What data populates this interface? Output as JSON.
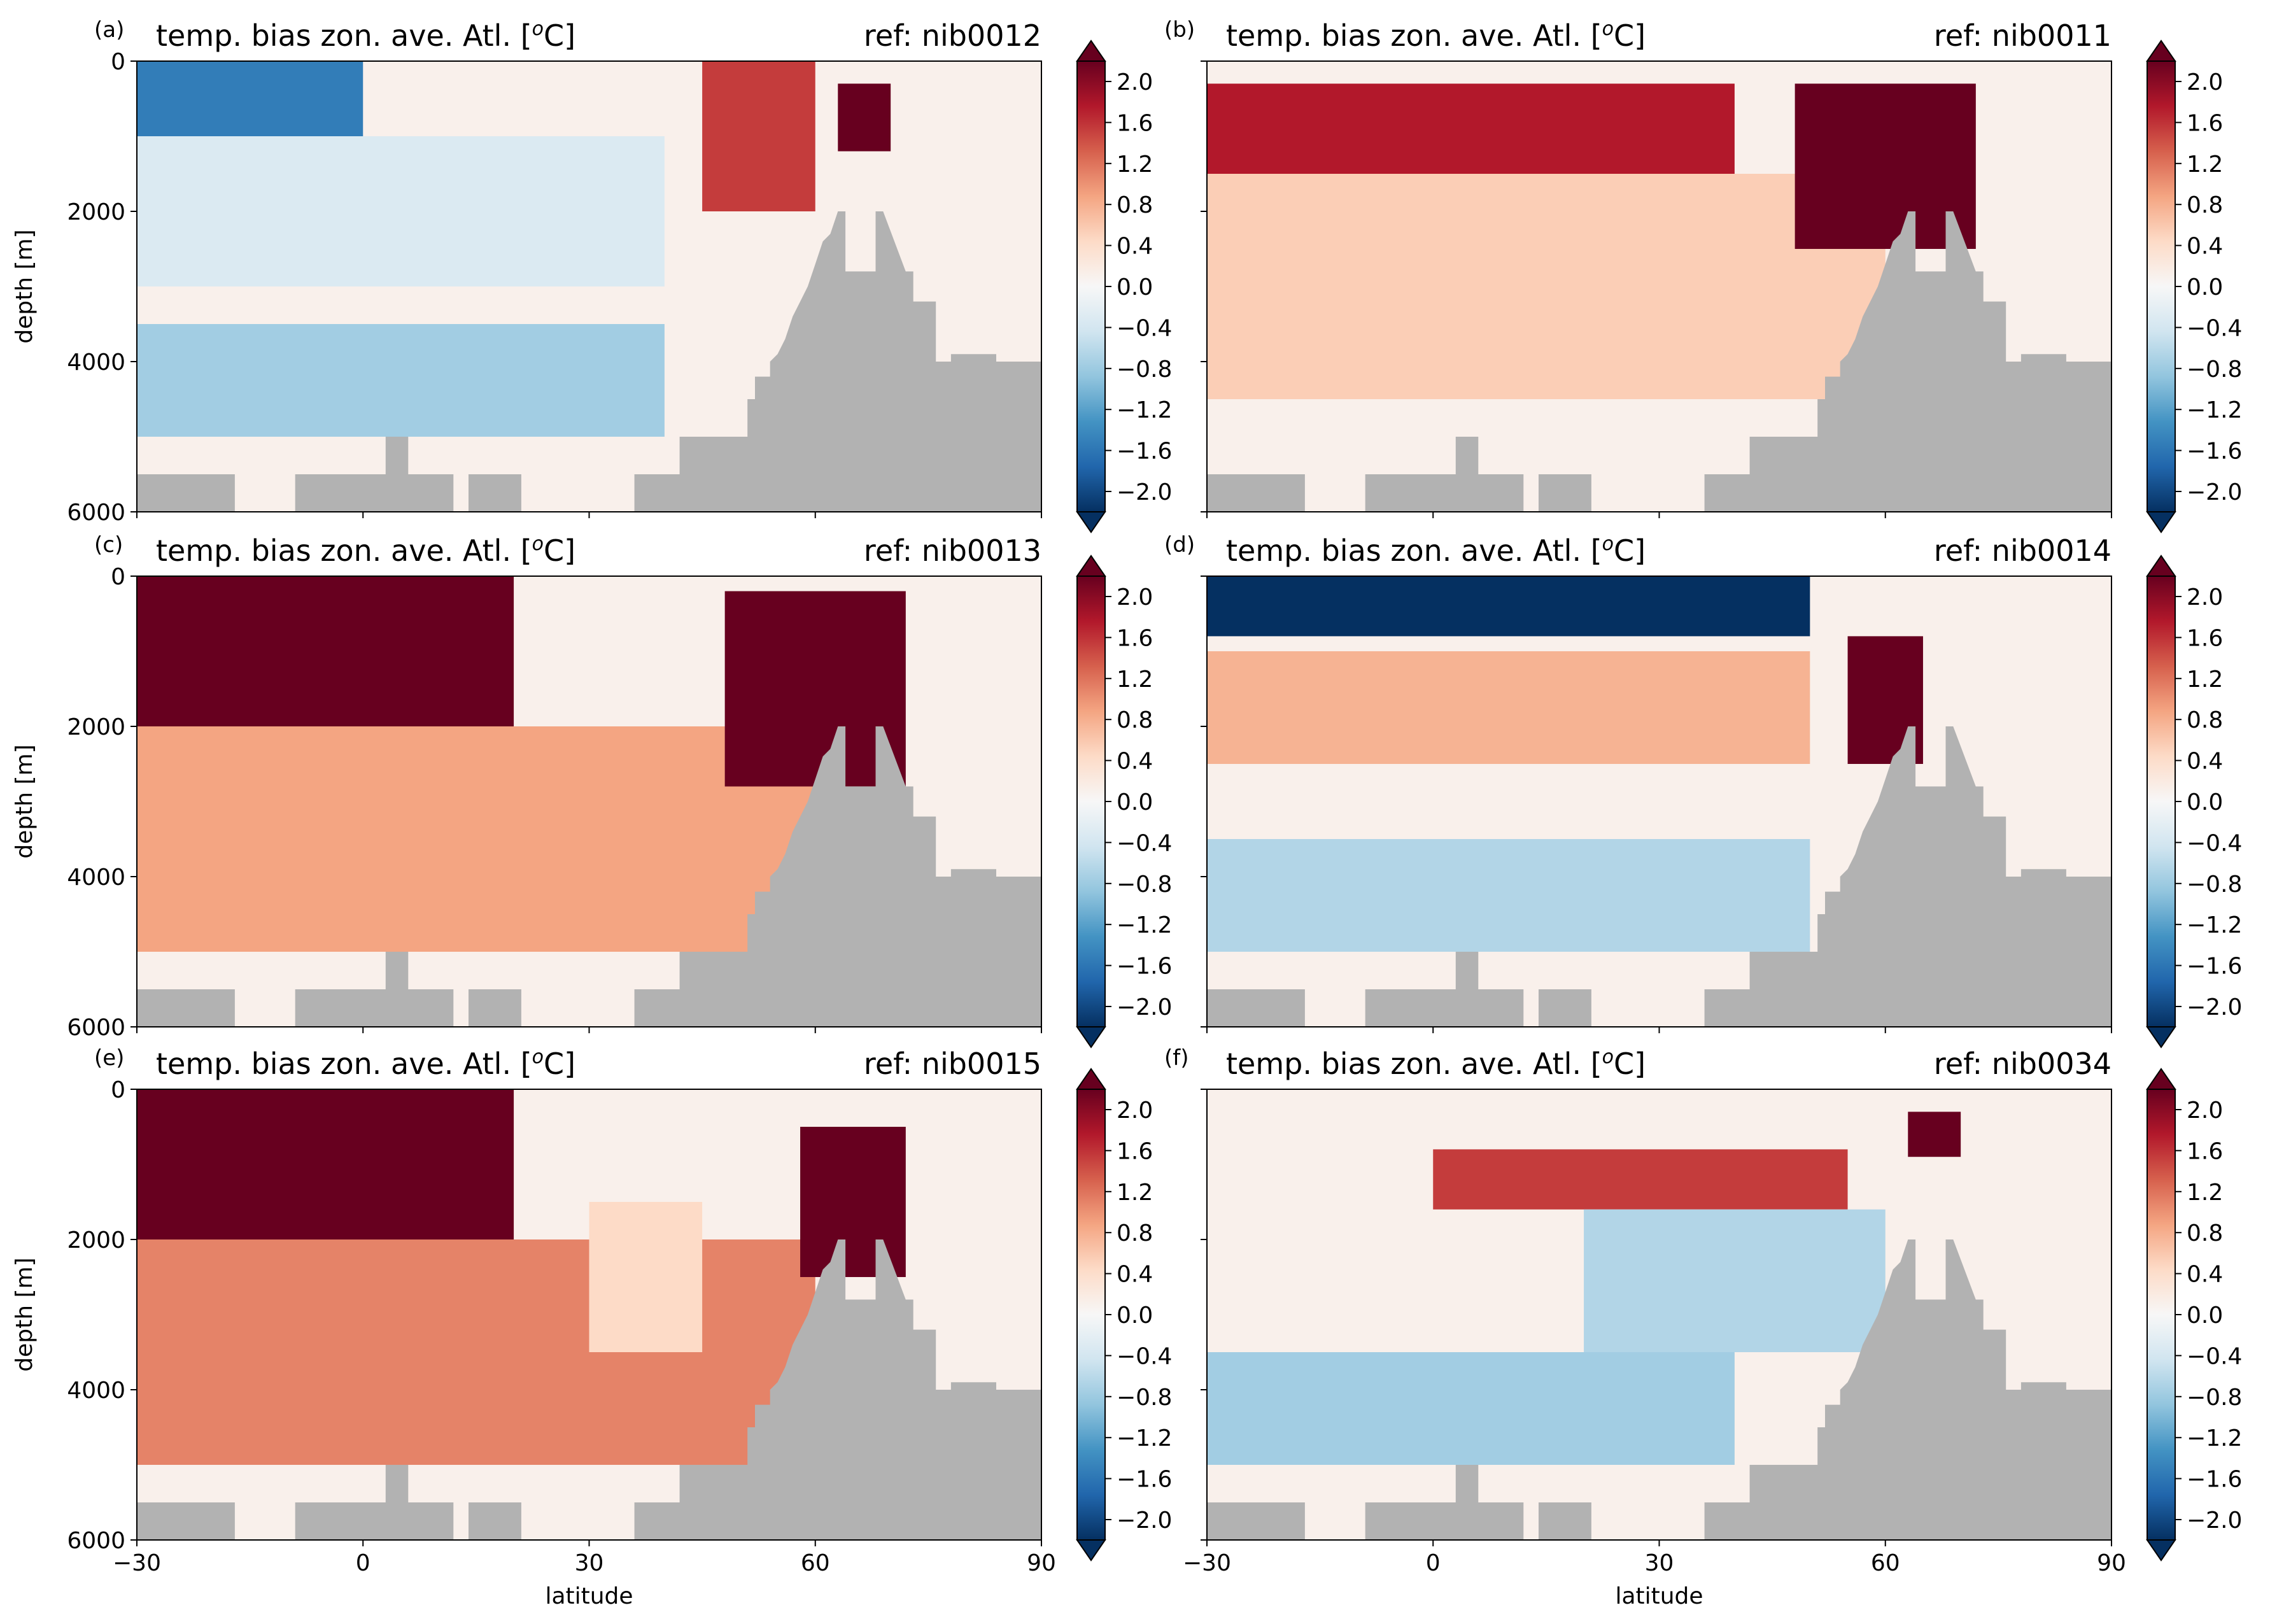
{
  "figure": {
    "common": {
      "title": "temp. bias zon. ave. Atl. [",
      "title_sup": "o",
      "title_end": "C]",
      "ylabel": "depth [m]",
      "xlabel": "latitude",
      "colorbar_max_label": "2.0"
    }
  },
  "colors": {
    "land": "#b2b2b2",
    "diverging_scale": [
      "#053061",
      "#2166ac",
      "#4393c3",
      "#92c5de",
      "#d1e5f0",
      "#f7f7f7",
      "#fddbc7",
      "#f4a582",
      "#d6604d",
      "#b2182b",
      "#67001f"
    ]
  },
  "chart_data": [
    {
      "type": "heatmap",
      "panel_label": "(a)",
      "title": "temp. bias zon. ave. Atl. [oC]",
      "ref_label": "ref: nib0012",
      "xlabel": "",
      "ylabel": "depth [m]",
      "xlim": [
        -30,
        90
      ],
      "ylim": [
        6000,
        0
      ],
      "x_ticks": [],
      "y_ticks": [
        "0",
        "2000",
        "4000",
        "6000"
      ],
      "colorbar": {
        "ticks": [
          "2.0",
          "1.6",
          "1.2",
          "0.8",
          "0.4",
          "0.0",
          "−0.4",
          "−0.8",
          "−1.2",
          "−1.6",
          "−2.0"
        ],
        "range": [
          -2.0,
          2.0
        ],
        "colormap": "RdBu_r",
        "extend": "both"
      },
      "field": [
        {
          "lat": [
            -30,
            0
          ],
          "depth": [
            0,
            1500
          ],
          "bias": -1.4
        },
        {
          "lat": [
            -30,
            40
          ],
          "depth": [
            1000,
            3000
          ],
          "bias": -0.3
        },
        {
          "lat": [
            -30,
            40
          ],
          "depth": [
            3500,
            5000
          ],
          "bias": -0.7
        },
        {
          "lat": [
            45,
            60
          ],
          "depth": [
            0,
            2000
          ],
          "bias": 1.4
        },
        {
          "lat": [
            63,
            70
          ],
          "depth": [
            300,
            1200
          ],
          "bias": 2.2
        }
      ]
    },
    {
      "type": "heatmap",
      "panel_label": "(b)",
      "title": "temp. bias zon. ave. Atl. [oC]",
      "ref_label": "ref: nib0011",
      "xlabel": "",
      "ylabel": "",
      "xlim": [
        -30,
        90
      ],
      "ylim": [
        6000,
        0
      ],
      "x_ticks": [],
      "y_ticks": [],
      "colorbar": {
        "ticks": [
          "2.0",
          "1.6",
          "1.2",
          "0.8",
          "0.4",
          "0.0",
          "−0.4",
          "−0.8",
          "−1.2",
          "−1.6",
          "−2.0"
        ],
        "range": [
          -2.0,
          2.0
        ],
        "colormap": "RdBu_r",
        "extend": "both"
      },
      "field": [
        {
          "lat": [
            -30,
            40
          ],
          "depth": [
            300,
            1500
          ],
          "bias": 1.6
        },
        {
          "lat": [
            -30,
            60
          ],
          "depth": [
            1500,
            4500
          ],
          "bias": 0.5
        },
        {
          "lat": [
            48,
            72
          ],
          "depth": [
            300,
            2500
          ],
          "bias": 2.2
        }
      ]
    },
    {
      "type": "heatmap",
      "panel_label": "(c)",
      "title": "temp. bias zon. ave. Atl. [oC]",
      "ref_label": "ref: nib0013",
      "xlabel": "",
      "ylabel": "depth [m]",
      "xlim": [
        -30,
        90
      ],
      "ylim": [
        6000,
        0
      ],
      "x_ticks": [],
      "y_ticks": [
        "0",
        "2000",
        "4000",
        "6000"
      ],
      "colorbar": {
        "ticks": [
          "2.0",
          "1.6",
          "1.2",
          "0.8",
          "0.4",
          "0.0",
          "−0.4",
          "−0.8",
          "−1.2",
          "−1.6",
          "−2.0"
        ],
        "range": [
          -2.0,
          2.0
        ],
        "colormap": "RdBu_r",
        "extend": "both"
      },
      "field": [
        {
          "lat": [
            -30,
            20
          ],
          "depth": [
            0,
            2000
          ],
          "bias": 2.2
        },
        {
          "lat": [
            -30,
            60
          ],
          "depth": [
            2000,
            5000
          ],
          "bias": 0.8
        },
        {
          "lat": [
            48,
            72
          ],
          "depth": [
            200,
            2800
          ],
          "bias": 2.2
        }
      ]
    },
    {
      "type": "heatmap",
      "panel_label": "(d)",
      "title": "temp. bias zon. ave. Atl. [oC]",
      "ref_label": "ref: nib0014",
      "xlabel": "",
      "ylabel": "",
      "xlim": [
        -30,
        90
      ],
      "ylim": [
        6000,
        0
      ],
      "x_ticks": [],
      "y_ticks": [],
      "colorbar": {
        "ticks": [
          "2.0",
          "1.6",
          "1.2",
          "0.8",
          "0.4",
          "0.0",
          "−0.4",
          "−0.8",
          "−1.2",
          "−1.6",
          "−2.0"
        ],
        "range": [
          -2.0,
          2.0
        ],
        "colormap": "RdBu_r",
        "extend": "both"
      },
      "field": [
        {
          "lat": [
            -30,
            50
          ],
          "depth": [
            0,
            800
          ],
          "bias": -2.2
        },
        {
          "lat": [
            -30,
            50
          ],
          "depth": [
            1000,
            2500
          ],
          "bias": 0.7
        },
        {
          "lat": [
            -30,
            50
          ],
          "depth": [
            3500,
            5000
          ],
          "bias": -0.6
        },
        {
          "lat": [
            55,
            65
          ],
          "depth": [
            800,
            2500
          ],
          "bias": 2.2
        }
      ]
    },
    {
      "type": "heatmap",
      "panel_label": "(e)",
      "title": "temp. bias zon. ave. Atl. [oC]",
      "ref_label": "ref: nib0015",
      "xlabel": "latitude",
      "ylabel": "depth [m]",
      "xlim": [
        -30,
        90
      ],
      "ylim": [
        6000,
        0
      ],
      "x_ticks": [
        "−30",
        "0",
        "30",
        "60",
        "90"
      ],
      "y_ticks": [
        "0",
        "2000",
        "4000",
        "6000"
      ],
      "colorbar": {
        "ticks": [
          "2.0",
          "1.6",
          "1.2",
          "0.8",
          "0.4",
          "0.0",
          "−0.4",
          "−0.8",
          "−1.2",
          "−1.6",
          "−2.0"
        ],
        "range": [
          -2.0,
          2.0
        ],
        "colormap": "RdBu_r",
        "extend": "both"
      },
      "field": [
        {
          "lat": [
            -30,
            20
          ],
          "depth": [
            0,
            2000
          ],
          "bias": 2.2
        },
        {
          "lat": [
            -30,
            60
          ],
          "depth": [
            2000,
            5000
          ],
          "bias": 1.0
        },
        {
          "lat": [
            30,
            45
          ],
          "depth": [
            1500,
            3500
          ],
          "bias": 0.4
        },
        {
          "lat": [
            58,
            72
          ],
          "depth": [
            500,
            2500
          ],
          "bias": 2.2
        }
      ]
    },
    {
      "type": "heatmap",
      "panel_label": "(f)",
      "title": "temp. bias zon. ave. Atl. [oC]",
      "ref_label": "ref: nib0034",
      "xlabel": "latitude",
      "ylabel": "",
      "xlim": [
        -30,
        90
      ],
      "ylim": [
        6000,
        0
      ],
      "x_ticks": [
        "−30",
        "0",
        "30",
        "60",
        "90"
      ],
      "y_ticks": [],
      "colorbar": {
        "ticks": [
          "2.0",
          "1.6",
          "1.2",
          "0.8",
          "0.4",
          "0.0",
          "−0.4",
          "−0.8",
          "−1.2",
          "−1.6",
          "−2.0"
        ],
        "range": [
          -2.0,
          2.0
        ],
        "colormap": "RdBu_r",
        "extend": "both"
      },
      "field": [
        {
          "lat": [
            0,
            55
          ],
          "depth": [
            800,
            1600
          ],
          "bias": 1.4
        },
        {
          "lat": [
            20,
            60
          ],
          "depth": [
            1600,
            3500
          ],
          "bias": -0.6
        },
        {
          "lat": [
            -30,
            40
          ],
          "depth": [
            3500,
            5000
          ],
          "bias": -0.7
        },
        {
          "lat": [
            63,
            70
          ],
          "depth": [
            300,
            900
          ],
          "bias": 2.2
        }
      ]
    }
  ]
}
